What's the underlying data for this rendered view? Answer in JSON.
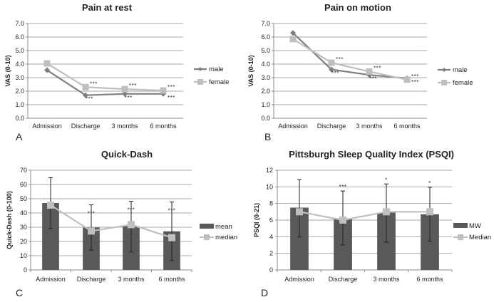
{
  "chart_data": [
    {
      "id": "A",
      "panel_label": "A",
      "type": "line",
      "title": "Pain at rest",
      "ylabel": "VAS (0-10)",
      "xlabel": "",
      "categories": [
        "Admission",
        "Discharge",
        "3 months",
        "6 months"
      ],
      "ylim": [
        0,
        7
      ],
      "yticks": [
        "0.0",
        "1.0",
        "2.0",
        "3.0",
        "4.0",
        "5.0",
        "6.0",
        "7.0"
      ],
      "grid": true,
      "legend": "right",
      "series": [
        {
          "name": "male",
          "marker": "diamond",
          "color": "#7f7f7f",
          "values": [
            3.55,
            1.7,
            1.8,
            1.8
          ],
          "annotations": [
            "",
            "***",
            "***",
            "***"
          ]
        },
        {
          "name": "female",
          "marker": "square",
          "color": "#bfbfbf",
          "values": [
            4.05,
            2.3,
            2.15,
            2.05
          ],
          "annotations": [
            "",
            "***",
            "***",
            "***"
          ]
        }
      ]
    },
    {
      "id": "B",
      "panel_label": "B",
      "type": "line",
      "title": "Pain on motion",
      "ylabel": "VAS (0-10)",
      "xlabel": "",
      "categories": [
        "Admission",
        "Discharge",
        "3 months",
        "6 months"
      ],
      "ylim": [
        0,
        7
      ],
      "yticks": [
        "0.0",
        "1.0",
        "2.0",
        "3.0",
        "4.0",
        "5.0",
        "6.0",
        "7.0"
      ],
      "grid": true,
      "legend": "right",
      "series": [
        {
          "name": "male",
          "marker": "diamond",
          "color": "#7f7f7f",
          "values": [
            6.3,
            3.6,
            3.2,
            2.95
          ],
          "annotations": [
            "",
            "***",
            "***",
            "***"
          ]
        },
        {
          "name": "female",
          "marker": "square",
          "color": "#bfbfbf",
          "values": [
            5.85,
            4.1,
            3.45,
            2.85
          ],
          "annotations": [
            "",
            "***",
            "***",
            "***"
          ]
        }
      ]
    },
    {
      "id": "C",
      "panel_label": "C",
      "type": "bar",
      "title": "Quick-Dash",
      "ylabel": "Quick-Dash (0-100)",
      "xlabel": "",
      "categories": [
        "Admission",
        "Discharge",
        "3 months",
        "6 months"
      ],
      "ylim": [
        0,
        70
      ],
      "yticks": [
        "0",
        "10",
        "20",
        "30",
        "40",
        "50",
        "60",
        "70"
      ],
      "grid": true,
      "legend": "right",
      "series": [
        {
          "name": "mean",
          "kind": "bar",
          "color": "#595959",
          "values": [
            47,
            29.8,
            30.7,
            27.1
          ],
          "error_low": [
            29.2,
            13.9,
            12.9,
            6.5
          ],
          "error_high": [
            64.8,
            45.7,
            48.2,
            47.7
          ]
        },
        {
          "name": "median",
          "kind": "line",
          "marker": "square",
          "color": "#bfbfbf",
          "values": [
            45.5,
            27.3,
            31.8,
            22.7
          ]
        }
      ],
      "annotations": [
        "",
        "***",
        "***",
        "***"
      ]
    },
    {
      "id": "D",
      "panel_label": "D",
      "type": "bar",
      "title": "Pittsburgh Sleep Quality Index (PSQI)",
      "ylabel": "PSQI (0-21)",
      "xlabel": "",
      "categories": [
        "Admission",
        "Discharge",
        "3 months",
        "6 months"
      ],
      "ylim": [
        0,
        12
      ],
      "yticks": [
        "0",
        "2",
        "4",
        "6",
        "8",
        "10",
        "12"
      ],
      "grid": true,
      "legend": "right",
      "series": [
        {
          "name": "MW",
          "kind": "bar",
          "color": "#595959",
          "values": [
            7.5,
            6.2,
            6.9,
            6.7
          ],
          "error_low": [
            4.0,
            3.0,
            3.35,
            3.45
          ],
          "error_high": [
            10.85,
            9.5,
            10.35,
            9.95
          ]
        },
        {
          "name": "Median",
          "kind": "line",
          "marker": "square",
          "color": "#bfbfbf",
          "values": [
            7,
            6,
            7,
            7
          ]
        }
      ],
      "annotations": [
        "",
        "***",
        "*",
        "*"
      ]
    }
  ]
}
